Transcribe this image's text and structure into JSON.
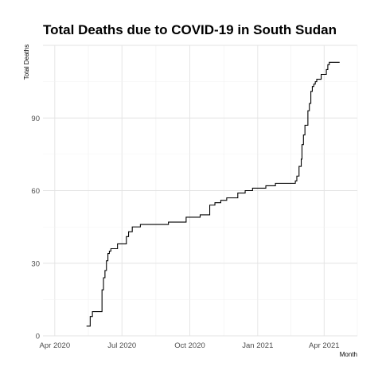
{
  "chart_data": {
    "type": "line",
    "title": "Total Deaths due to COVID-19 in South Sudan",
    "xlabel": "Month",
    "ylabel": "Total Deaths",
    "xlim": [
      "2020-03-16",
      "2021-05-16"
    ],
    "ylim": [
      0,
      120
    ],
    "x_ticks": [
      {
        "date": "2020-04-01",
        "label": "Apr 2020"
      },
      {
        "date": "2020-07-01",
        "label": "Jul 2020"
      },
      {
        "date": "2020-10-01",
        "label": "Oct 2020"
      },
      {
        "date": "2021-01-01",
        "label": "Jan 2021"
      },
      {
        "date": "2021-04-01",
        "label": "Apr 2021"
      }
    ],
    "y_ticks": [
      0,
      30,
      60,
      90
    ],
    "grid": true,
    "series": [
      {
        "color": "#000000",
        "step": true,
        "x": [
          "2020-05-14",
          "2020-05-16",
          "2020-05-19",
          "2020-05-22",
          "2020-06-02",
          "2020-06-04",
          "2020-06-06",
          "2020-06-08",
          "2020-06-10",
          "2020-06-12",
          "2020-06-14",
          "2020-06-16",
          "2020-06-20",
          "2020-06-25",
          "2020-07-04",
          "2020-07-07",
          "2020-07-10",
          "2020-07-15",
          "2020-07-18",
          "2020-07-26",
          "2020-09-02",
          "2020-09-24",
          "2020-09-26",
          "2020-09-28",
          "2020-10-05",
          "2020-10-10",
          "2020-10-15",
          "2020-10-18",
          "2020-10-28",
          "2020-11-04",
          "2020-11-12",
          "2020-11-20",
          "2020-12-05",
          "2020-12-15",
          "2020-12-25",
          "2021-01-12",
          "2021-01-25",
          "2021-02-08",
          "2021-02-21",
          "2021-02-23",
          "2021-02-26",
          "2021-03-01",
          "2021-03-02",
          "2021-03-04",
          "2021-03-06",
          "2021-03-08",
          "2021-03-10",
          "2021-03-12",
          "2021-03-14",
          "2021-03-16",
          "2021-03-18",
          "2021-03-20",
          "2021-03-22",
          "2021-03-24",
          "2021-03-28",
          "2021-04-04",
          "2021-04-06",
          "2021-04-08",
          "2021-04-11",
          "2021-04-16",
          "2021-04-22"
        ],
        "y": [
          4,
          4,
          8,
          10,
          10,
          19,
          24,
          27,
          31,
          34,
          35,
          36,
          36,
          38,
          38,
          41,
          43,
          45,
          45,
          46,
          47,
          47,
          49,
          49,
          49,
          49,
          50,
          50,
          54,
          55,
          56,
          57,
          59,
          60,
          61,
          62,
          63,
          63,
          64,
          66,
          70,
          73,
          79,
          83,
          87,
          87,
          93,
          96,
          101,
          103,
          104,
          105,
          106,
          106,
          108,
          110,
          112,
          113,
          113,
          113,
          113
        ]
      }
    ]
  }
}
